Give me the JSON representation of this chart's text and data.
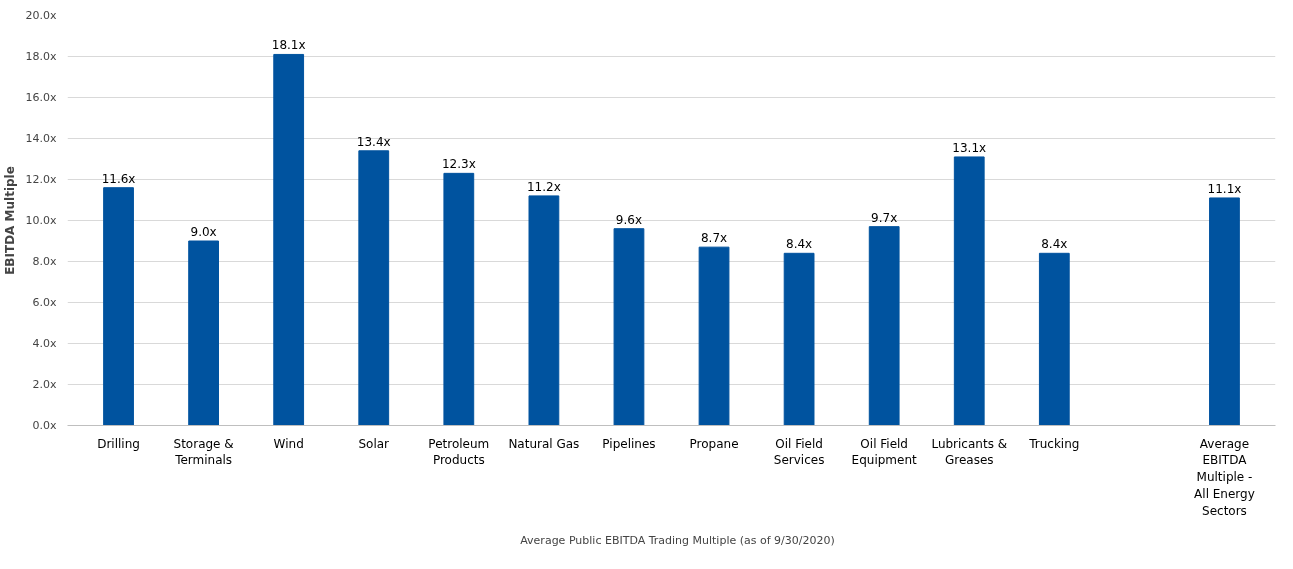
{
  "chart_data": {
    "type": "bar",
    "ylabel": "EBITDA Multiple",
    "categories": [
      "Drilling",
      "Storage & Terminals",
      "Wind",
      "Solar",
      "Petroleum Products",
      "Natural Gas",
      "Pipelines",
      "Propane",
      "Oil Field Services",
      "Oil Field Equipment",
      "Lubricants & Greases",
      "Trucking",
      null,
      "Average EBITDA Multiple - All Energy Sectors"
    ],
    "series": [
      {
        "name": "Average Public EBITDA Trading Multiple (as of 9/30/2020)",
        "color": "#00539f",
        "values": [
          11.6,
          9.0,
          18.1,
          13.4,
          12.3,
          11.2,
          9.6,
          8.7,
          8.4,
          9.7,
          13.1,
          8.4,
          null,
          11.1
        ],
        "value_labels": [
          "11.6x",
          "9.0x",
          "18.1x",
          "13.4x",
          "12.3x",
          "11.2x",
          "9.6x",
          "8.7x",
          "8.4x",
          "9.7x",
          "13.1x",
          "8.4x",
          null,
          "11.1x"
        ]
      }
    ],
    "ylim": [
      0,
      20
    ],
    "yticks": [
      {
        "value": 0,
        "label": "0.0x"
      },
      {
        "value": 2,
        "label": "2.0x"
      },
      {
        "value": 4,
        "label": "4.0x"
      },
      {
        "value": 6,
        "label": "6.0x"
      },
      {
        "value": 8,
        "label": "8.0x"
      },
      {
        "value": 10,
        "label": "10.0x"
      },
      {
        "value": 12,
        "label": "12.0x"
      },
      {
        "value": 14,
        "label": "14.0x"
      },
      {
        "value": 16,
        "label": "16.0x"
      },
      {
        "value": 18,
        "label": "18.0x"
      },
      {
        "value": 20,
        "label": "20.0x"
      }
    ],
    "grid": "y",
    "legend": "bottom"
  }
}
